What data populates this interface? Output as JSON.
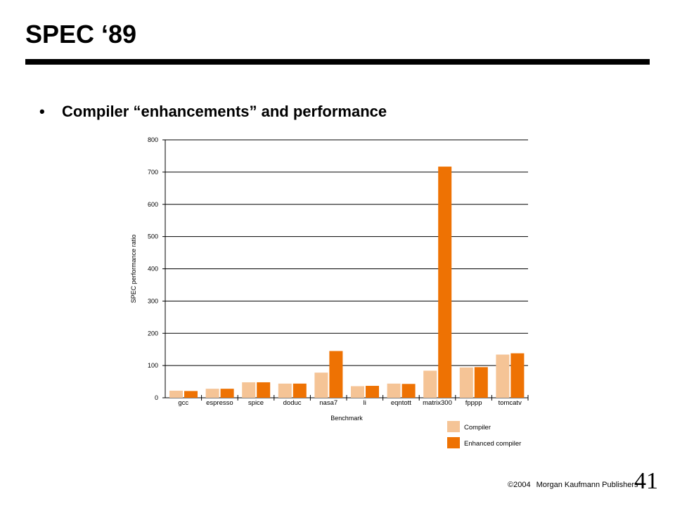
{
  "slide": {
    "title": "SPEC ‘89",
    "bullet_symbol": "•",
    "bullet_text": "Compiler “enhancements” and performance"
  },
  "footer": {
    "copyright": "©2004",
    "publisher": "Morgan Kaufmann Publishers",
    "page_number": "41"
  },
  "chart_data": {
    "type": "bar",
    "categories": [
      "gcc",
      "espresso",
      "spice",
      "doduc",
      "nasa7",
      "li",
      "eqntott",
      "matrix300",
      "fpppp",
      "tomcatv"
    ],
    "series": [
      {
        "name": "Compiler",
        "values": [
          22,
          28,
          48,
          44,
          78,
          36,
          44,
          84,
          94,
          134
        ]
      },
      {
        "name": "Enhanced compiler",
        "values": [
          21,
          28,
          48,
          44,
          145,
          37,
          43,
          717,
          95,
          138
        ]
      }
    ],
    "colors": [
      "#f5c496",
      "#ee7203"
    ],
    "xlabel": "Benchmark",
    "ylabel": "SPEC performance ratio",
    "ylim": [
      0,
      800
    ],
    "yticks": [
      0,
      100,
      200,
      300,
      400,
      500,
      600,
      700,
      800
    ],
    "grid": true,
    "legend_position": "bottom-right"
  }
}
